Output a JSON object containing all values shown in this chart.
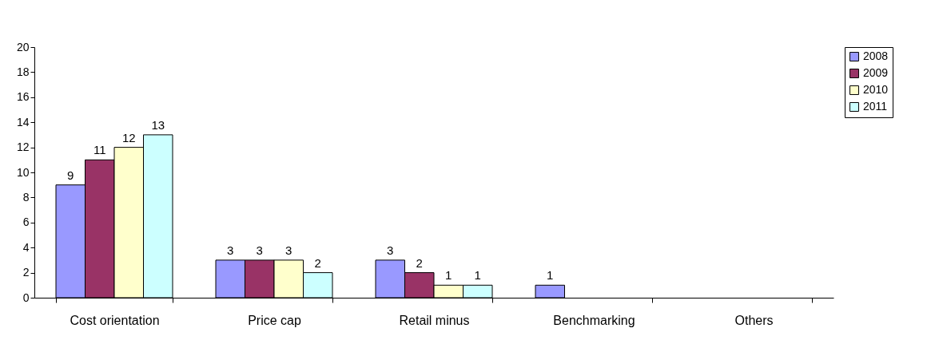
{
  "chart_data": {
    "type": "bar",
    "categories": [
      "Cost orientation",
      "Price cap",
      "Retail minus",
      "Benchmarking",
      "Others"
    ],
    "series": [
      {
        "name": "2008",
        "color": "#9999ff",
        "values": [
          9,
          3,
          3,
          1,
          null
        ],
        "value_labels": [
          "9",
          "3",
          "3",
          "1",
          null
        ]
      },
      {
        "name": "2009",
        "color": "#993366",
        "values": [
          11,
          3,
          2,
          null,
          null
        ],
        "value_labels": [
          "11",
          "3",
          "2",
          null,
          null
        ]
      },
      {
        "name": "2010",
        "color": "#ffffcc",
        "values": [
          12,
          3,
          1,
          null,
          null
        ],
        "value_labels": [
          "12",
          "3",
          "1",
          null,
          null
        ]
      },
      {
        "name": "2011",
        "color": "#ccffff",
        "values": [
          13,
          2,
          1,
          null,
          null
        ],
        "value_labels": [
          "13",
          "2",
          "1",
          null,
          null
        ]
      }
    ],
    "ylim": [
      0,
      20
    ],
    "yticks": [
      0,
      2,
      4,
      6,
      8,
      10,
      12,
      14,
      16,
      18,
      20
    ],
    "grid": false,
    "legend": "right"
  }
}
